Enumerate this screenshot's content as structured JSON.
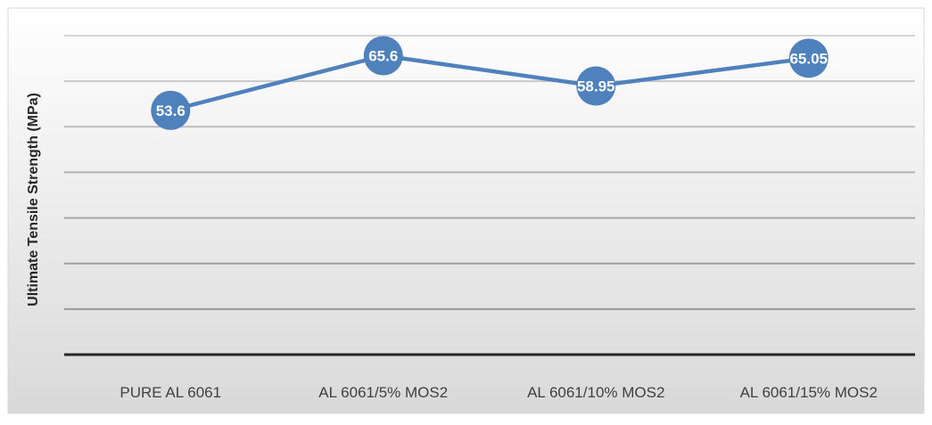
{
  "colors": {
    "series": "#4f81bd",
    "marker_label": "#ffffff",
    "tick_label": "#404040",
    "axis_title": "#262626",
    "gridline": "#8c8c8c",
    "background_top": "#ffffff",
    "background_bottom": "#d9d9d9"
  },
  "chart_data": {
    "type": "line",
    "title": "",
    "xlabel": "",
    "ylabel": "Ultimate Tensile Strength (MPa)",
    "categories": [
      "PURE AL 6061",
      "AL 6061/5% MOS2",
      "AL 6061/10% MOS2",
      "AL 6061/15% MOS2"
    ],
    "series": [
      {
        "values": [
          53.6,
          65.6,
          58.95,
          65.05
        ],
        "data_labels": [
          "53.6",
          "65.6",
          "58.95",
          "65.05"
        ]
      }
    ],
    "ylim": [
      0,
      70
    ],
    "y_tick_step": 10,
    "y_tick_labels_visible": false,
    "grid": true,
    "legend": "none",
    "markers": "circle",
    "data_labels_position": "center"
  }
}
